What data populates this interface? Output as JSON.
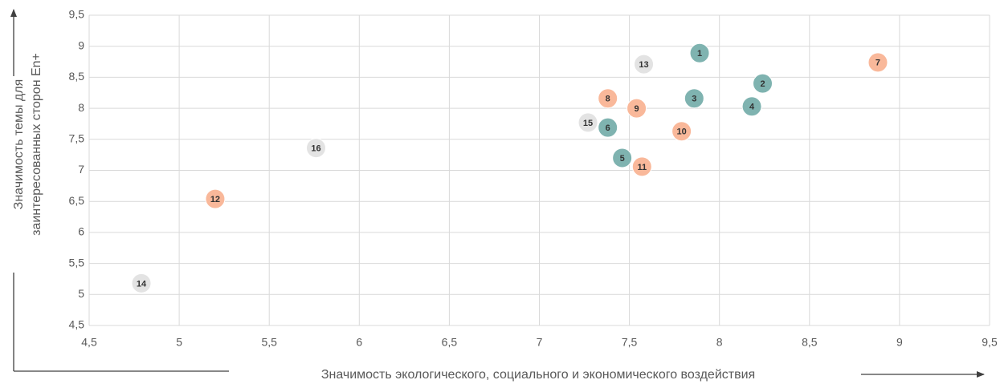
{
  "chart_data": {
    "type": "scatter",
    "xlabel": "Значимость экологического, социального и экономического воздействия",
    "ylabel": [
      "Значимость темы для",
      "заинтересованных сторон En+"
    ],
    "labels": [
      "1",
      "2",
      "3",
      "4",
      "5",
      "6",
      "7",
      "8",
      "9",
      "10",
      "11",
      "12",
      "13",
      "14",
      "15",
      "16"
    ],
    "x": [
      7.89,
      8.24,
      7.86,
      8.18,
      7.46,
      7.38,
      8.88,
      7.38,
      7.54,
      7.79,
      7.57,
      5.2,
      7.58,
      4.79,
      7.27,
      5.76
    ],
    "y": [
      8.89,
      8.4,
      8.16,
      8.03,
      7.2,
      7.69,
      8.74,
      8.16,
      8.0,
      7.63,
      7.06,
      6.54,
      8.71,
      5.18,
      7.77,
      7.36
    ],
    "colors": [
      "#7fb3b0",
      "#7fb3b0",
      "#7fb3b0",
      "#7fb3b0",
      "#7fb3b0",
      "#7fb3b0",
      "#f9b89a",
      "#f9b89a",
      "#f9b89a",
      "#f9b89a",
      "#f9b89a",
      "#f9b89a",
      "#e3e3e3",
      "#e3e3e3",
      "#e3e3e3",
      "#e3e3e3"
    ],
    "xlim": [
      4.5,
      9.5
    ],
    "xticks": [
      {
        "value": 4.5,
        "label": "4,5"
      },
      5,
      {
        "value": 5.5,
        "label": "5,5"
      },
      6,
      {
        "value": 6.5,
        "label": "6,5"
      },
      7,
      {
        "value": 7.5,
        "label": "7,5"
      },
      8,
      {
        "value": 8.5,
        "label": "8,5"
      },
      9,
      {
        "value": 9.5,
        "label": "9,5"
      }
    ],
    "ylim": [
      4.5,
      9.5
    ],
    "yticks": [
      {
        "value": 4.5,
        "label": "4,5"
      },
      5,
      {
        "value": 5.5,
        "label": "5,5"
      },
      6,
      {
        "value": 6.5,
        "label": "6,5"
      },
      7,
      {
        "value": 7.5,
        "label": "7,5"
      },
      8,
      {
        "value": 8.5,
        "label": "8,5"
      },
      9,
      {
        "value": 9.5,
        "label": "9,5"
      }
    ],
    "grid": true
  }
}
